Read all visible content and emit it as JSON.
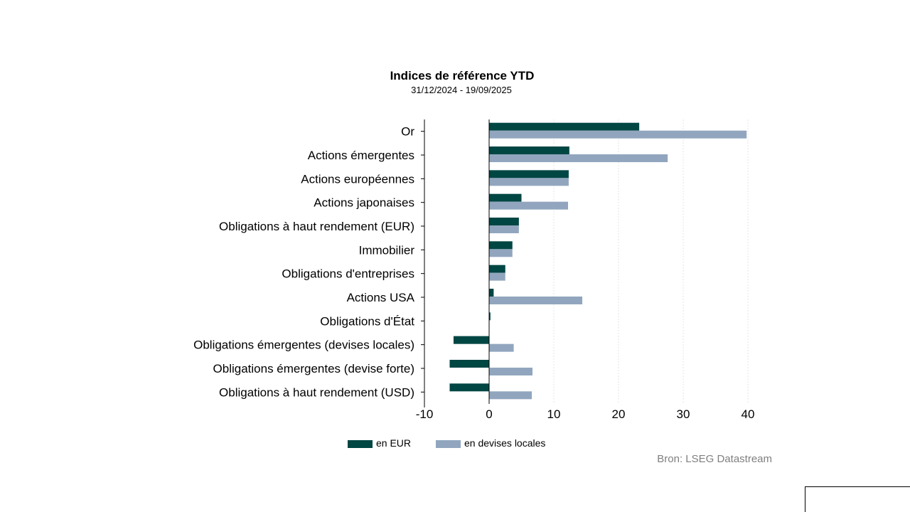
{
  "chart_data": {
    "type": "bar",
    "orientation": "horizontal",
    "title": "Indices de référence YTD",
    "subtitle": "31/12/2024 - 19/09/2025",
    "categories": [
      "Or",
      "Actions émergentes",
      "Actions européennes",
      "Actions japonaises",
      "Obligations à haut rendement (EUR)",
      "Immobilier",
      "Obligations d'entreprises",
      "Actions USA",
      "Obligations d'État",
      "Obligations émergentes (devises locales)",
      "Obligations émergentes (devise forte)",
      "Obligations à haut rendement (USD)"
    ],
    "series": [
      {
        "name": "en EUR",
        "color": "#004643",
        "values": [
          23.2,
          12.4,
          12.3,
          5.0,
          4.6,
          3.6,
          2.5,
          0.7,
          0.2,
          -5.5,
          -6.1,
          -6.1
        ]
      },
      {
        "name": "en devises locales",
        "color": "#91a6be",
        "values": [
          39.8,
          27.6,
          12.3,
          12.2,
          4.6,
          3.6,
          2.5,
          14.4,
          0.0,
          3.8,
          6.7,
          6.6
        ]
      }
    ],
    "xlim": [
      -10,
      40
    ],
    "xticks": [
      "-10",
      "0",
      "10",
      "20",
      "30",
      "40"
    ],
    "grid": true,
    "legend_position": "bottom"
  },
  "source": "Bron: LSEG Datastream"
}
